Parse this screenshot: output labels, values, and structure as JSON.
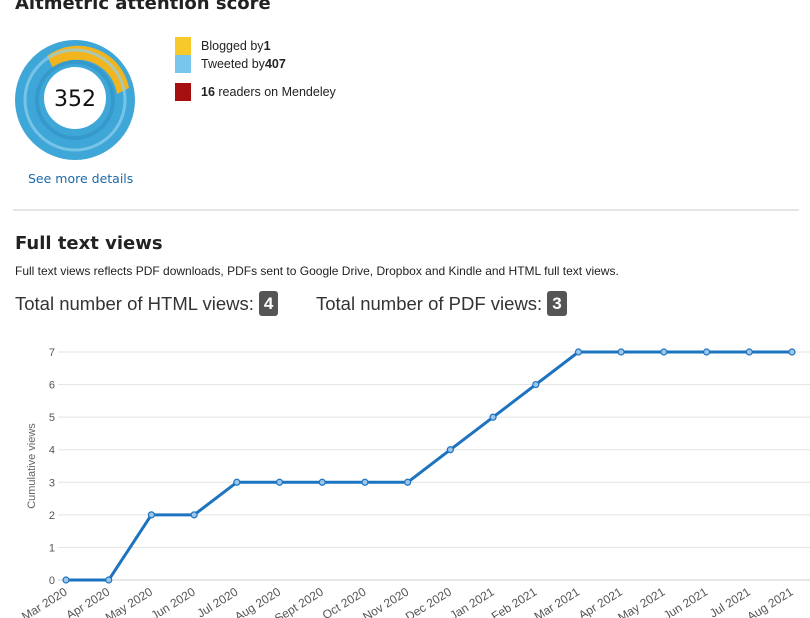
{
  "altmetric": {
    "title": "Altmetric attention score",
    "score": "352",
    "see_more": "See more details",
    "colors": {
      "blogs": "#f7c92b",
      "twitter": "#5bbde6",
      "mendeley": "#a60f0f",
      "donut_blue": "#3fa7d8",
      "donut_yellow": "#f2b51e"
    },
    "legend": [
      {
        "prefix": "Blogged by ",
        "count": "1",
        "suffix": "",
        "color": "#f7c92b"
      },
      {
        "prefix": "Tweeted by ",
        "count": "407",
        "suffix": "",
        "color": "#76c6ed"
      },
      {
        "prefix": "",
        "count": "16",
        "suffix": " readers on Mendeley",
        "color": "#a60f0f"
      }
    ]
  },
  "fulltext": {
    "title": "Full text views",
    "description": "Full text views reflects PDF downloads, PDFs sent to Google Drive, Dropbox and Kindle and HTML full text views.",
    "html_label": "Total number of HTML views:",
    "html_count": "4",
    "pdf_label": "Total number of PDF views:",
    "pdf_count": "3"
  },
  "chart_data": {
    "type": "line",
    "ylabel": "Cumulative views",
    "xlabel": "",
    "ylim": [
      0,
      7
    ],
    "yticks": [
      0,
      1,
      2,
      3,
      4,
      5,
      6,
      7
    ],
    "grid": true,
    "line_color": "#1c73bf",
    "categories": [
      "Mar 2020",
      "Apr 2020",
      "May 2020",
      "Jun 2020",
      "Jul 2020",
      "Aug 2020",
      "Sept 2020",
      "Oct 2020",
      "Nov 2020",
      "Dec 2020",
      "Jan 2021",
      "Feb 2021",
      "Mar 2021",
      "Apr 2021",
      "May 2021",
      "Jun 2021",
      "Jul 2021",
      "Aug 2021"
    ],
    "series": [
      {
        "values": [
          0,
          0,
          2,
          2,
          3,
          3,
          3,
          3,
          3,
          4,
          5,
          6,
          7,
          7,
          7,
          7,
          7,
          7
        ]
      }
    ]
  }
}
